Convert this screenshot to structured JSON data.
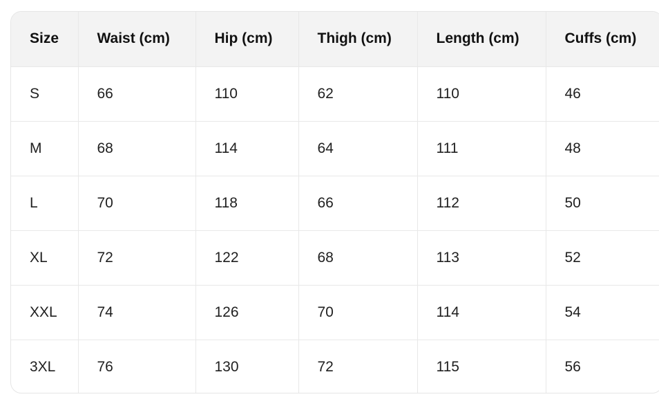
{
  "table": {
    "headers": [
      "Size",
      "Waist (cm)",
      "Hip (cm)",
      "Thigh (cm)",
      "Length (cm)",
      "Cuffs (cm)"
    ],
    "rows": [
      [
        "S",
        "66",
        "110",
        "62",
        "110",
        "46"
      ],
      [
        "M",
        "68",
        "114",
        "64",
        "111",
        "48"
      ],
      [
        "L",
        "70",
        "118",
        "66",
        "112",
        "50"
      ],
      [
        "XL",
        "72",
        "122",
        "68",
        "113",
        "52"
      ],
      [
        "XXL",
        "74",
        "126",
        "70",
        "114",
        "54"
      ],
      [
        "3XL",
        "76",
        "130",
        "72",
        "115",
        "56"
      ]
    ]
  }
}
